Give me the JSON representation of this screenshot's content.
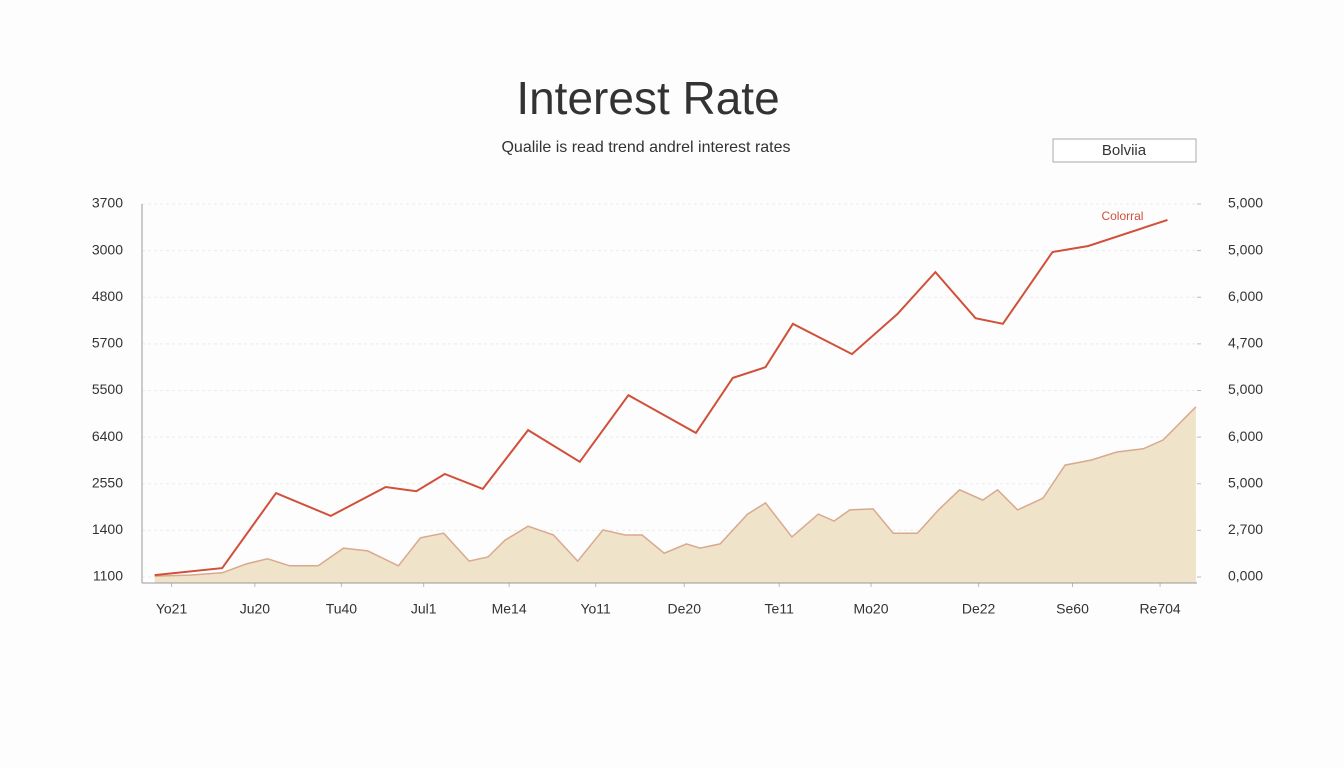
{
  "chart_data": {
    "type": "line",
    "title": "Interest Rate",
    "subtitle": "Qualile is read trend andrel interest rates",
    "xlim": [
      0,
      100
    ],
    "xticks": [
      {
        "value": 2.8,
        "label": "Yo21"
      },
      {
        "value": 10.7,
        "label": "Ju20"
      },
      {
        "value": 18.9,
        "label": "Tu40"
      },
      {
        "value": 26.7,
        "label": "Jul1"
      },
      {
        "value": 34.8,
        "label": "Me14"
      },
      {
        "value": 43.0,
        "label": "Yo11"
      },
      {
        "value": 51.4,
        "label": "De20"
      },
      {
        "value": 60.4,
        "label": "Te11"
      },
      {
        "value": 69.1,
        "label": "Mo20"
      },
      {
        "value": 79.3,
        "label": "De22"
      },
      {
        "value": 88.2,
        "label": "Se60"
      },
      {
        "value": 96.5,
        "label": "Re704"
      }
    ],
    "ylim": [
      0,
      8
    ],
    "yticks": [
      {
        "value": 0,
        "label": "1100"
      },
      {
        "value": 1,
        "label": "1400"
      },
      {
        "value": 2,
        "label": "2550"
      },
      {
        "value": 3,
        "label": "6400"
      },
      {
        "value": 4,
        "label": "5500"
      },
      {
        "value": 5,
        "label": "5700"
      },
      {
        "value": 6,
        "label": "4800"
      },
      {
        "value": 7,
        "label": "3000"
      },
      {
        "value": 8,
        "label": "3700"
      }
    ],
    "y2lim": [
      0,
      8
    ],
    "y2ticks": [
      {
        "value": 0,
        "label": "0,000"
      },
      {
        "value": 1,
        "label": "2,700"
      },
      {
        "value": 2,
        "label": "5,000"
      },
      {
        "value": 3,
        "label": "6,000"
      },
      {
        "value": 4,
        "label": "5,000"
      },
      {
        "value": 5,
        "label": "4,700"
      },
      {
        "value": 6,
        "label": "6,000"
      },
      {
        "value": 7,
        "label": "5,000"
      },
      {
        "value": 8,
        "label": "5,000"
      }
    ],
    "grid": true,
    "legend": "top-right",
    "series": [
      {
        "name": "Colorral",
        "color": "#d0503a",
        "area": false,
        "x": [
          1.2,
          7.6,
          12.7,
          17.9,
          23.1,
          26.0,
          28.7,
          32.3,
          36.6,
          41.5,
          46.1,
          52.5,
          56.0,
          59.1,
          61.7,
          67.3,
          71.6,
          75.2,
          79.0,
          81.6,
          86.3,
          89.7,
          97.2
        ],
        "values": [
          0.04,
          0.19,
          1.8,
          1.31,
          1.93,
          1.84,
          2.21,
          1.89,
          3.15,
          2.47,
          3.9,
          3.09,
          4.27,
          4.5,
          5.43,
          4.78,
          5.64,
          6.54,
          5.55,
          5.43,
          6.97,
          7.1,
          7.66
        ]
      },
      {
        "name": "Bolviia",
        "color": "#efe3c9",
        "area": true,
        "x": [
          1.2,
          4.5,
          7.6,
          9.9,
          11.9,
          14.0,
          16.7,
          19.1,
          21.4,
          24.3,
          26.4,
          28.6,
          31.0,
          32.8,
          34.4,
          36.6,
          39.0,
          41.3,
          43.7,
          45.8,
          47.4,
          49.5,
          51.6,
          52.9,
          54.8,
          57.4,
          59.1,
          61.6,
          64.1,
          65.6,
          67.1,
          69.3,
          71.2,
          73.5,
          75.5,
          77.5,
          79.7,
          81.1,
          83.0,
          85.4,
          87.5,
          90.0,
          92.4,
          94.9,
          96.8,
          99.9
        ],
        "values": [
          0.02,
          0.04,
          0.09,
          0.28,
          0.39,
          0.24,
          0.24,
          0.62,
          0.56,
          0.24,
          0.84,
          0.94,
          0.34,
          0.43,
          0.79,
          1.09,
          0.9,
          0.34,
          1.01,
          0.9,
          0.9,
          0.51,
          0.71,
          0.62,
          0.71,
          1.35,
          1.59,
          0.86,
          1.35,
          1.2,
          1.44,
          1.46,
          0.94,
          0.94,
          1.44,
          1.87,
          1.65,
          1.87,
          1.44,
          1.69,
          2.4,
          2.51,
          2.68,
          2.75,
          2.94,
          3.65
        ]
      }
    ]
  }
}
